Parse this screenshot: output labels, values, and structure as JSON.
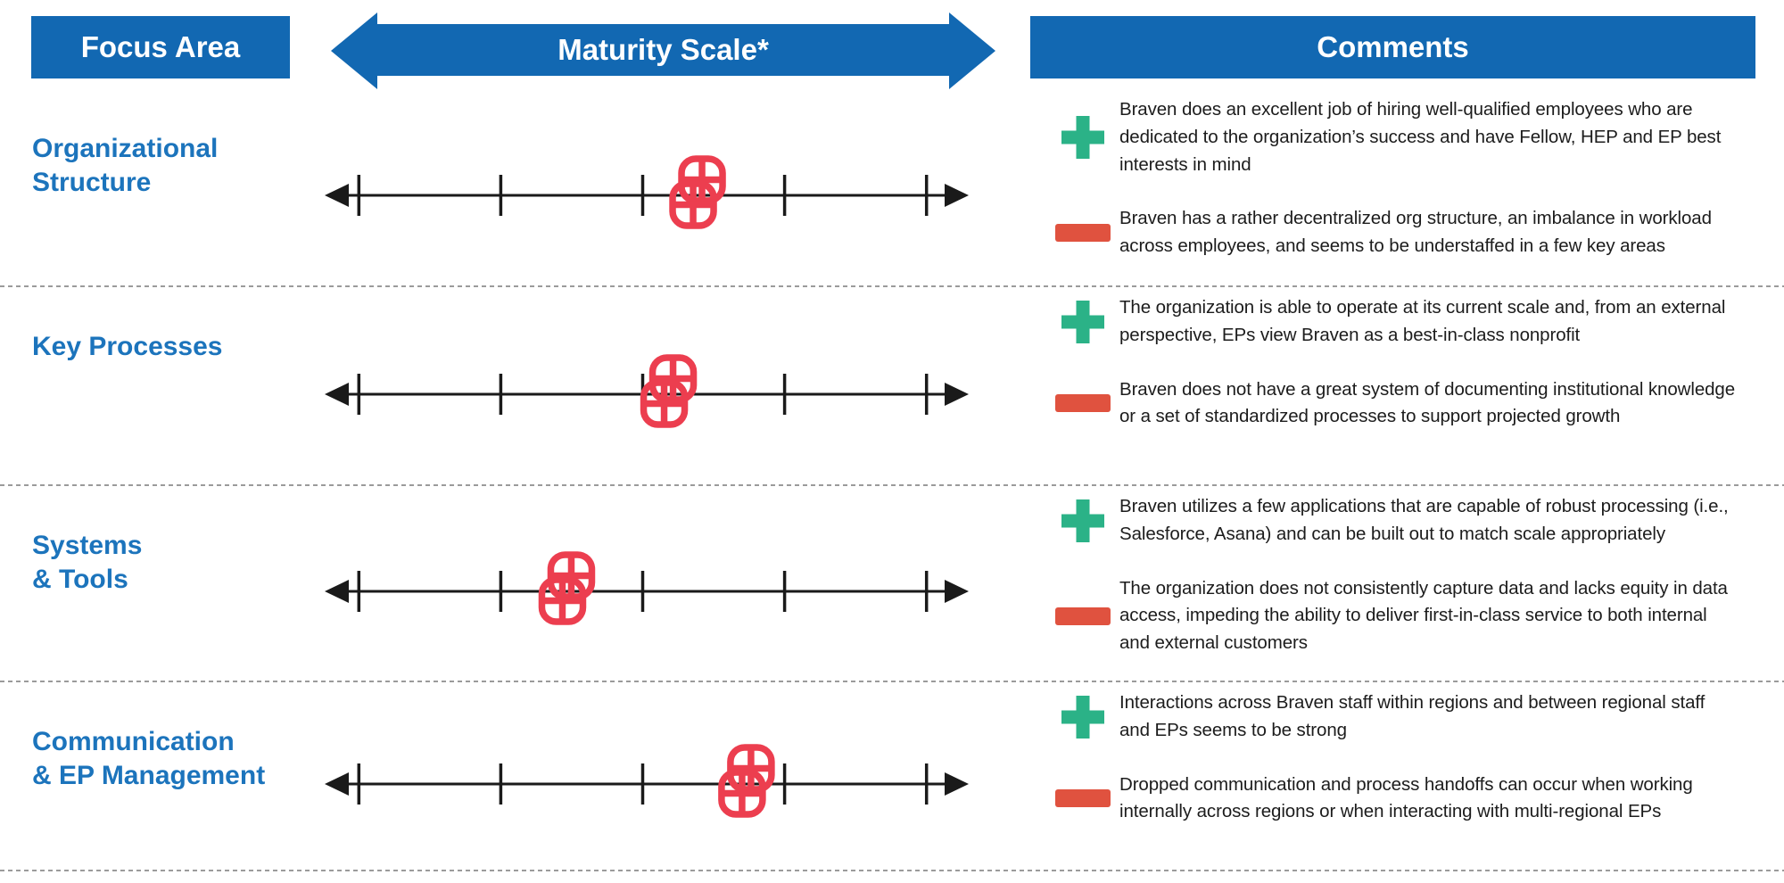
{
  "header": {
    "focus_area": "Focus Area",
    "maturity_scale": "Maturity Scale*",
    "comments": "Comments"
  },
  "colors": {
    "header_blue": "#1268B2",
    "label_blue": "#1C74BC",
    "marker_red": "#EC3E4F",
    "plus_green": "#2BB287",
    "minus_red": "#E0523F",
    "scale_black": "#1A1A1A",
    "divider_gray": "#9B9B9B",
    "text_dark": "#1C1C1C"
  },
  "scale": {
    "tick_count": 5,
    "style": "double-headed arrow line with ticks, red overlapping-squares marker"
  },
  "rows": [
    {
      "label": "Organizational\nStructure",
      "marker_percent": 57.9,
      "positive": "Braven does an excellent job of hiring well-qualified employees who are dedicated to the organization’s success and have Fellow, HEP and EP best interests in mind",
      "negative": "Braven has a rather decentralized org structure, an imbalance in workload across employees, and seems to be understaffed in a few key areas"
    },
    {
      "label": "Key Processes",
      "marker_percent": 53.4,
      "positive": "The organization is able to operate at its current scale and, from an external perspective, EPs view Braven as a best-in-class nonprofit",
      "negative": "Braven does not have a great system of documenting institutional knowledge or a set of standardized processes to support projected growth"
    },
    {
      "label": "Systems\n& Tools",
      "marker_percent": 37.6,
      "positive": "Braven utilizes a few applications that are capable of robust processing (i.e., Salesforce, Asana) and can be built out to match scale appropriately",
      "negative": "The organization does not consistently capture data and lacks equity in data access, impeding the ability to deliver first-in-class service to both internal and external customers"
    },
    {
      "label": "Communication\n& EP Management",
      "marker_percent": 65.5,
      "positive": "Interactions across Braven staff within regions and between regional staff and EPs seems to be strong",
      "negative": "Dropped communication and process handoffs can occur when working internally across regions or when interacting with multi-regional EPs"
    }
  ]
}
